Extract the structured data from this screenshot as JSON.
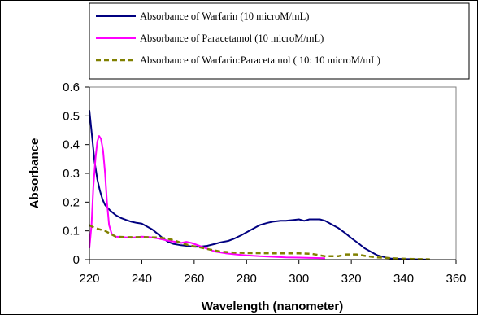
{
  "chart_data": {
    "type": "line",
    "xlabel": "Wavelength (nanometer)",
    "ylabel": "Absorbance",
    "xlim": [
      220,
      360
    ],
    "ylim": [
      0,
      0.6
    ],
    "x_ticks": [
      220,
      240,
      260,
      280,
      300,
      320,
      340,
      360
    ],
    "y_ticks": [
      0,
      0.1,
      0.2,
      0.3,
      0.4,
      0.5,
      0.6
    ],
    "x_tick_labels": [
      "220",
      "240",
      "260",
      "280",
      "300",
      "320",
      "340",
      "360"
    ],
    "y_tick_labels": [
      "0",
      "0.1",
      "0.2",
      "0.3",
      "0.4",
      "0.5",
      "0.6"
    ],
    "grid": false,
    "legend_position": "top-right",
    "series": [
      {
        "name": "Absorbance of Warfarin (10 microM/mL)",
        "color": "#000080",
        "dash": "solid",
        "points": [
          [
            220,
            0.52
          ],
          [
            221,
            0.43
          ],
          [
            222,
            0.34
          ],
          [
            223,
            0.28
          ],
          [
            224,
            0.24
          ],
          [
            225,
            0.21
          ],
          [
            226,
            0.19
          ],
          [
            228,
            0.17
          ],
          [
            230,
            0.155
          ],
          [
            232,
            0.145
          ],
          [
            234,
            0.138
          ],
          [
            236,
            0.132
          ],
          [
            238,
            0.128
          ],
          [
            240,
            0.125
          ],
          [
            242,
            0.115
          ],
          [
            244,
            0.105
          ],
          [
            246,
            0.09
          ],
          [
            248,
            0.075
          ],
          [
            250,
            0.062
          ],
          [
            252,
            0.055
          ],
          [
            255,
            0.05
          ],
          [
            258,
            0.047
          ],
          [
            260,
            0.045
          ],
          [
            262,
            0.045
          ],
          [
            265,
            0.048
          ],
          [
            268,
            0.055
          ],
          [
            270,
            0.06
          ],
          [
            273,
            0.065
          ],
          [
            275,
            0.072
          ],
          [
            278,
            0.085
          ],
          [
            280,
            0.095
          ],
          [
            283,
            0.11
          ],
          [
            285,
            0.12
          ],
          [
            288,
            0.128
          ],
          [
            290,
            0.132
          ],
          [
            293,
            0.135
          ],
          [
            295,
            0.135
          ],
          [
            298,
            0.138
          ],
          [
            300,
            0.14
          ],
          [
            302,
            0.135
          ],
          [
            304,
            0.14
          ],
          [
            306,
            0.14
          ],
          [
            308,
            0.14
          ],
          [
            310,
            0.135
          ],
          [
            313,
            0.12
          ],
          [
            315,
            0.11
          ],
          [
            318,
            0.09
          ],
          [
            320,
            0.075
          ],
          [
            323,
            0.055
          ],
          [
            325,
            0.04
          ],
          [
            328,
            0.025
          ],
          [
            330,
            0.015
          ],
          [
            333,
            0.008
          ],
          [
            335,
            0.004
          ],
          [
            340,
            0.002
          ],
          [
            345,
            0.001
          ],
          [
            350,
            0.0
          ]
        ]
      },
      {
        "name": "Absorbance of Paracetamol (10 microM/mL)",
        "color": "#ff00ff",
        "dash": "solid",
        "points": [
          [
            220,
            0.04
          ],
          [
            220.8,
            0.12
          ],
          [
            221.5,
            0.25
          ],
          [
            222.3,
            0.35
          ],
          [
            223,
            0.41
          ],
          [
            223.7,
            0.43
          ],
          [
            224.4,
            0.42
          ],
          [
            225.2,
            0.38
          ],
          [
            226,
            0.3
          ],
          [
            226.7,
            0.2
          ],
          [
            227.5,
            0.12
          ],
          [
            228.5,
            0.09
          ],
          [
            230,
            0.08
          ],
          [
            233,
            0.078
          ],
          [
            236,
            0.076
          ],
          [
            240,
            0.08
          ],
          [
            243,
            0.078
          ],
          [
            246,
            0.074
          ],
          [
            250,
            0.066
          ],
          [
            253,
            0.062
          ],
          [
            255,
            0.058
          ],
          [
            257,
            0.062
          ],
          [
            259,
            0.058
          ],
          [
            262,
            0.048
          ],
          [
            265,
            0.038
          ],
          [
            268,
            0.028
          ],
          [
            272,
            0.022
          ],
          [
            276,
            0.018
          ],
          [
            280,
            0.015
          ],
          [
            285,
            0.012
          ],
          [
            290,
            0.01
          ],
          [
            295,
            0.008
          ],
          [
            300,
            0.007
          ],
          [
            305,
            0.006
          ],
          [
            310,
            0.005
          ]
        ]
      },
      {
        "name": "Absorbance of Warfarin:Paracetamol ( 10: 10 microM/mL)",
        "color": "#808000",
        "dash": "dashed",
        "points": [
          [
            220,
            0.12
          ],
          [
            222,
            0.11
          ],
          [
            224,
            0.105
          ],
          [
            226,
            0.1
          ],
          [
            228,
            0.09
          ],
          [
            230,
            0.08
          ],
          [
            234,
            0.078
          ],
          [
            238,
            0.078
          ],
          [
            242,
            0.078
          ],
          [
            246,
            0.077
          ],
          [
            250,
            0.073
          ],
          [
            253,
            0.065
          ],
          [
            256,
            0.055
          ],
          [
            259,
            0.048
          ],
          [
            262,
            0.043
          ],
          [
            266,
            0.035
          ],
          [
            270,
            0.028
          ],
          [
            275,
            0.025
          ],
          [
            280,
            0.023
          ],
          [
            290,
            0.022
          ],
          [
            300,
            0.022
          ],
          [
            305,
            0.02
          ],
          [
            308,
            0.015
          ],
          [
            310,
            0.012
          ],
          [
            315,
            0.012
          ],
          [
            318,
            0.018
          ],
          [
            322,
            0.018
          ],
          [
            326,
            0.012
          ],
          [
            330,
            0.008
          ],
          [
            335,
            0.005
          ],
          [
            340,
            0.003
          ],
          [
            345,
            0.002
          ],
          [
            350,
            0.001
          ]
        ]
      }
    ]
  }
}
